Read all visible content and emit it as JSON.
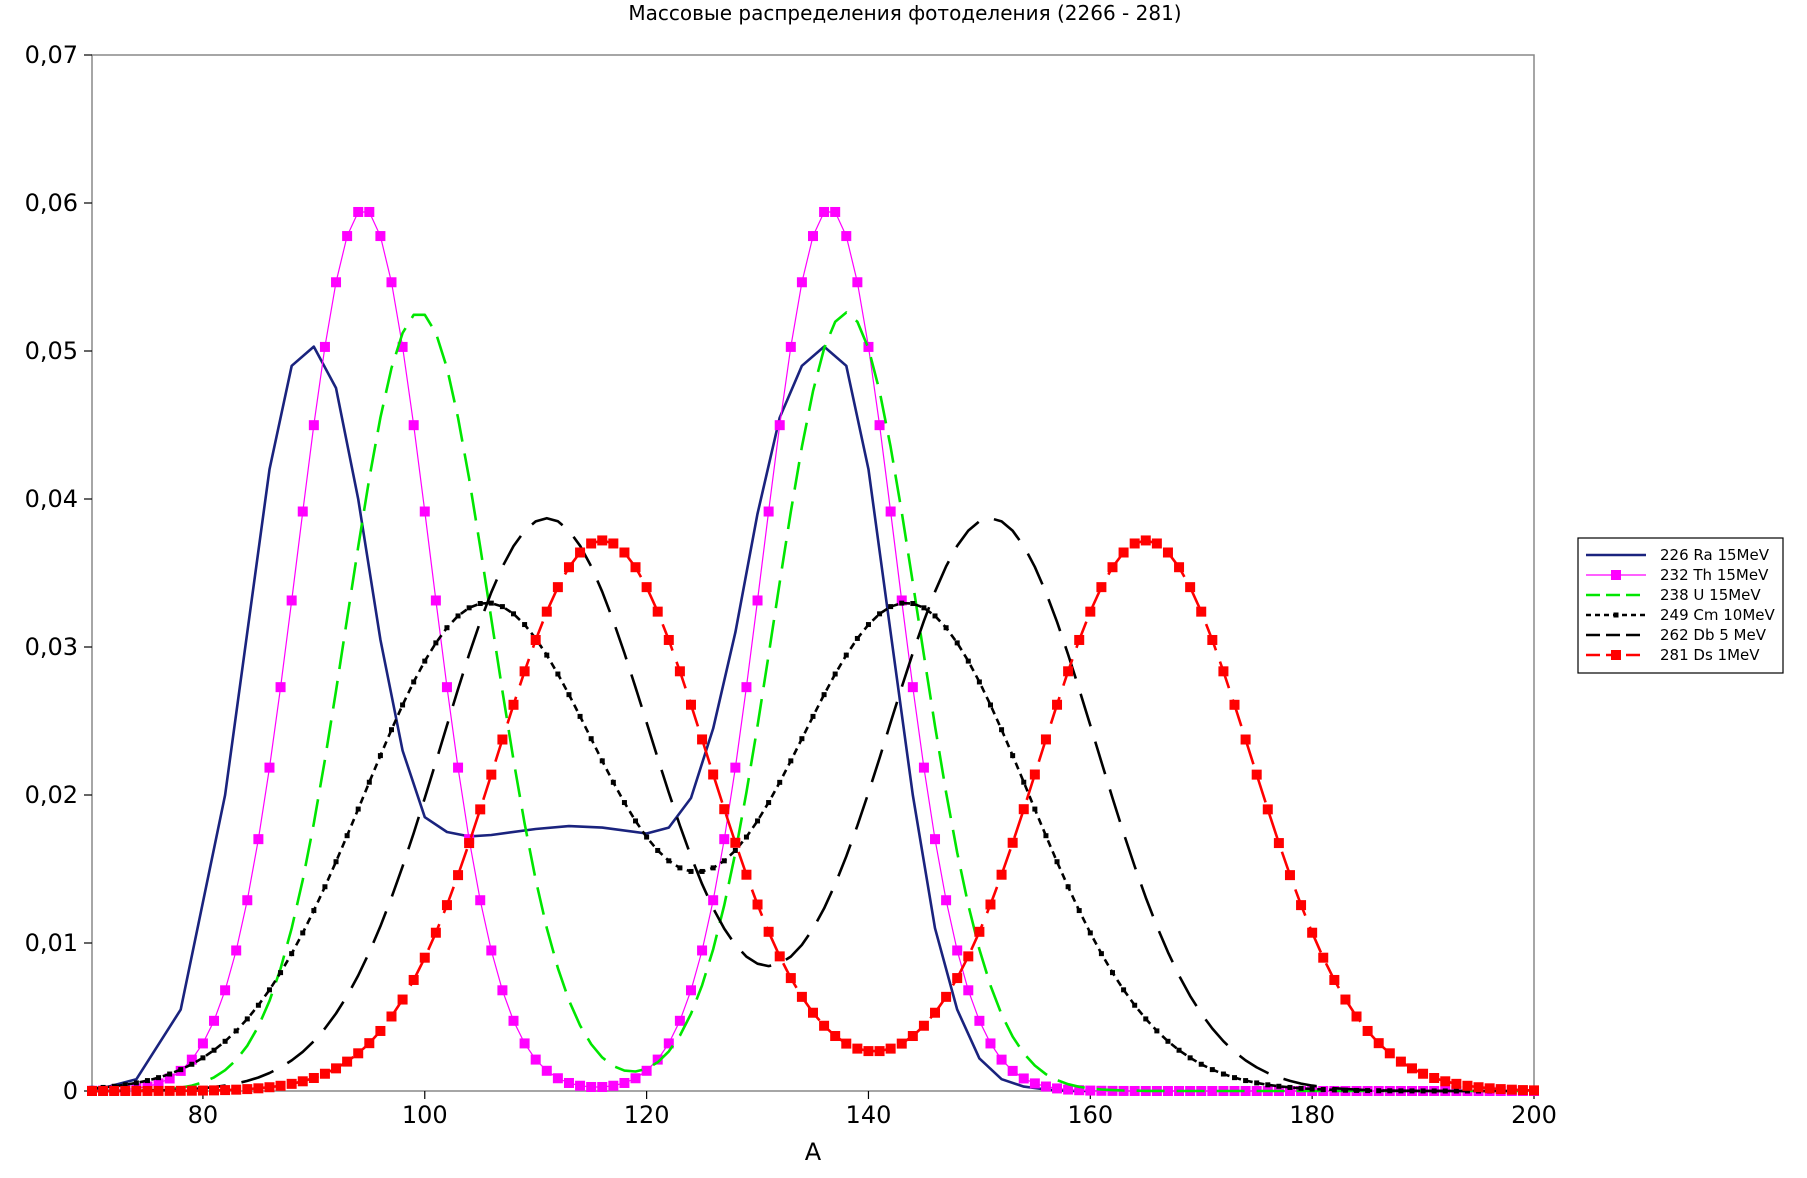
{
  "chart_data": {
    "type": "line",
    "title": "Массовые распределения фотоделения (2266 - 281)",
    "xlabel": "A",
    "ylabel": "",
    "xlim": [
      70,
      200
    ],
    "ylim": [
      0,
      0.07
    ],
    "x_ticks": [
      80,
      100,
      120,
      140,
      160,
      180,
      200
    ],
    "y_ticks": [
      0,
      0.01,
      0.02,
      0.03,
      0.04,
      0.05,
      0.06,
      0.07
    ],
    "y_tick_labels": [
      "0",
      "0,01",
      "0,02",
      "0,03",
      "0,04",
      "0,05",
      "0,06",
      "0,07"
    ],
    "grid": false,
    "legend_position": "right",
    "series": [
      {
        "name": "226 Ra 15MeV",
        "color": "#1a237e",
        "style": "solid",
        "marker": "none",
        "x": [
          70,
          74,
          78,
          82,
          84,
          86,
          88,
          90,
          92,
          94,
          96,
          98,
          100,
          102,
          104,
          106,
          110,
          113,
          116,
          120,
          122,
          124,
          126,
          128,
          130,
          132,
          134,
          136,
          138,
          140,
          142,
          144,
          146,
          148,
          150,
          152,
          154,
          156,
          158,
          160
        ],
        "y": [
          0.0,
          0.0008,
          0.0055,
          0.02,
          0.031,
          0.042,
          0.049,
          0.0503,
          0.0475,
          0.04,
          0.0305,
          0.023,
          0.0185,
          0.0175,
          0.0172,
          0.0173,
          0.0177,
          0.0179,
          0.0178,
          0.0174,
          0.0178,
          0.0198,
          0.0245,
          0.031,
          0.039,
          0.0455,
          0.049,
          0.0503,
          0.049,
          0.042,
          0.031,
          0.02,
          0.011,
          0.0055,
          0.0022,
          0.0008,
          0.0003,
          0.0001,
          0.0,
          0.0
        ]
      },
      {
        "name": "232 Th 15MeV",
        "color": "#ff00ff",
        "style": "solid",
        "marker": "square",
        "peaks": [
          {
            "mu": 94.5,
            "sigma": 6.0,
            "amp": 0.0596
          },
          {
            "mu": 136.5,
            "sigma": 6.0,
            "amp": 0.0596
          }
        ]
      },
      {
        "name": "238 U 15MeV",
        "color": "#00e600",
        "style": "dashed",
        "marker": "none",
        "peaks": [
          {
            "mu": 99.5,
            "sigma": 6.5,
            "amp": 0.0526
          },
          {
            "mu": 138,
            "sigma": 6.5,
            "amp": 0.0526
          }
        ]
      },
      {
        "name": "249 Cm 10MeV",
        "color": "#000000",
        "style": "dotted",
        "marker": "small-square",
        "peaks": [
          {
            "mu": 105.5,
            "sigma": 11.0,
            "amp": 0.0329
          },
          {
            "mu": 143.5,
            "sigma": 11.0,
            "amp": 0.0329
          }
        ]
      },
      {
        "name": "262 Db 5 MeV",
        "color": "#000000",
        "style": "long-dash",
        "marker": "none",
        "peaks": [
          {
            "mu": 111,
            "sigma": 9.5,
            "amp": 0.0387
          },
          {
            "mu": 151,
            "sigma": 9.5,
            "amp": 0.0387
          }
        ]
      },
      {
        "name": "281 Ds 1MeV",
        "color": "#ff0000",
        "style": "dashed",
        "marker": "square",
        "peaks": [
          {
            "mu": 116,
            "sigma": 9.5,
            "amp": 0.0372
          },
          {
            "mu": 165,
            "sigma": 9.5,
            "amp": 0.0372
          }
        ]
      }
    ]
  }
}
